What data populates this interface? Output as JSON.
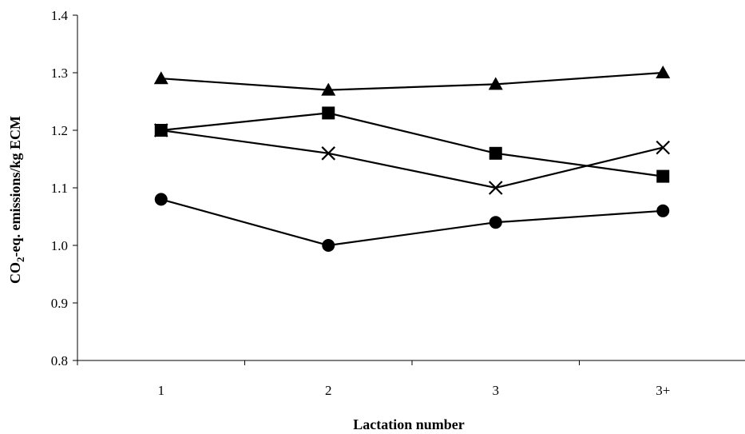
{
  "chart_data": {
    "type": "line",
    "title": "",
    "xlabel": "Lactation number",
    "ylabel": {
      "prefix": "CO",
      "subscript": "2",
      "suffix": "-eq. emissions/kg ECM"
    },
    "categories": [
      "1",
      "2",
      "3",
      "3+"
    ],
    "ylim": [
      0.8,
      1.4
    ],
    "yticks": [
      "0.8",
      "0.9",
      "1.0",
      "1.1",
      "1.2",
      "1.3",
      "1.4"
    ],
    "grid": false,
    "legend": "none",
    "series": [
      {
        "marker": "triangle",
        "values": [
          1.29,
          1.27,
          1.28,
          1.3
        ]
      },
      {
        "marker": "square",
        "values": [
          1.2,
          1.23,
          1.16,
          1.12
        ]
      },
      {
        "marker": "x",
        "values": [
          1.2,
          1.16,
          1.1,
          1.17
        ]
      },
      {
        "marker": "circle",
        "values": [
          1.08,
          1.0,
          1.04,
          1.06
        ]
      }
    ],
    "colors": {
      "line": "#000000",
      "marker": "#000000",
      "axis": "#000000"
    }
  }
}
